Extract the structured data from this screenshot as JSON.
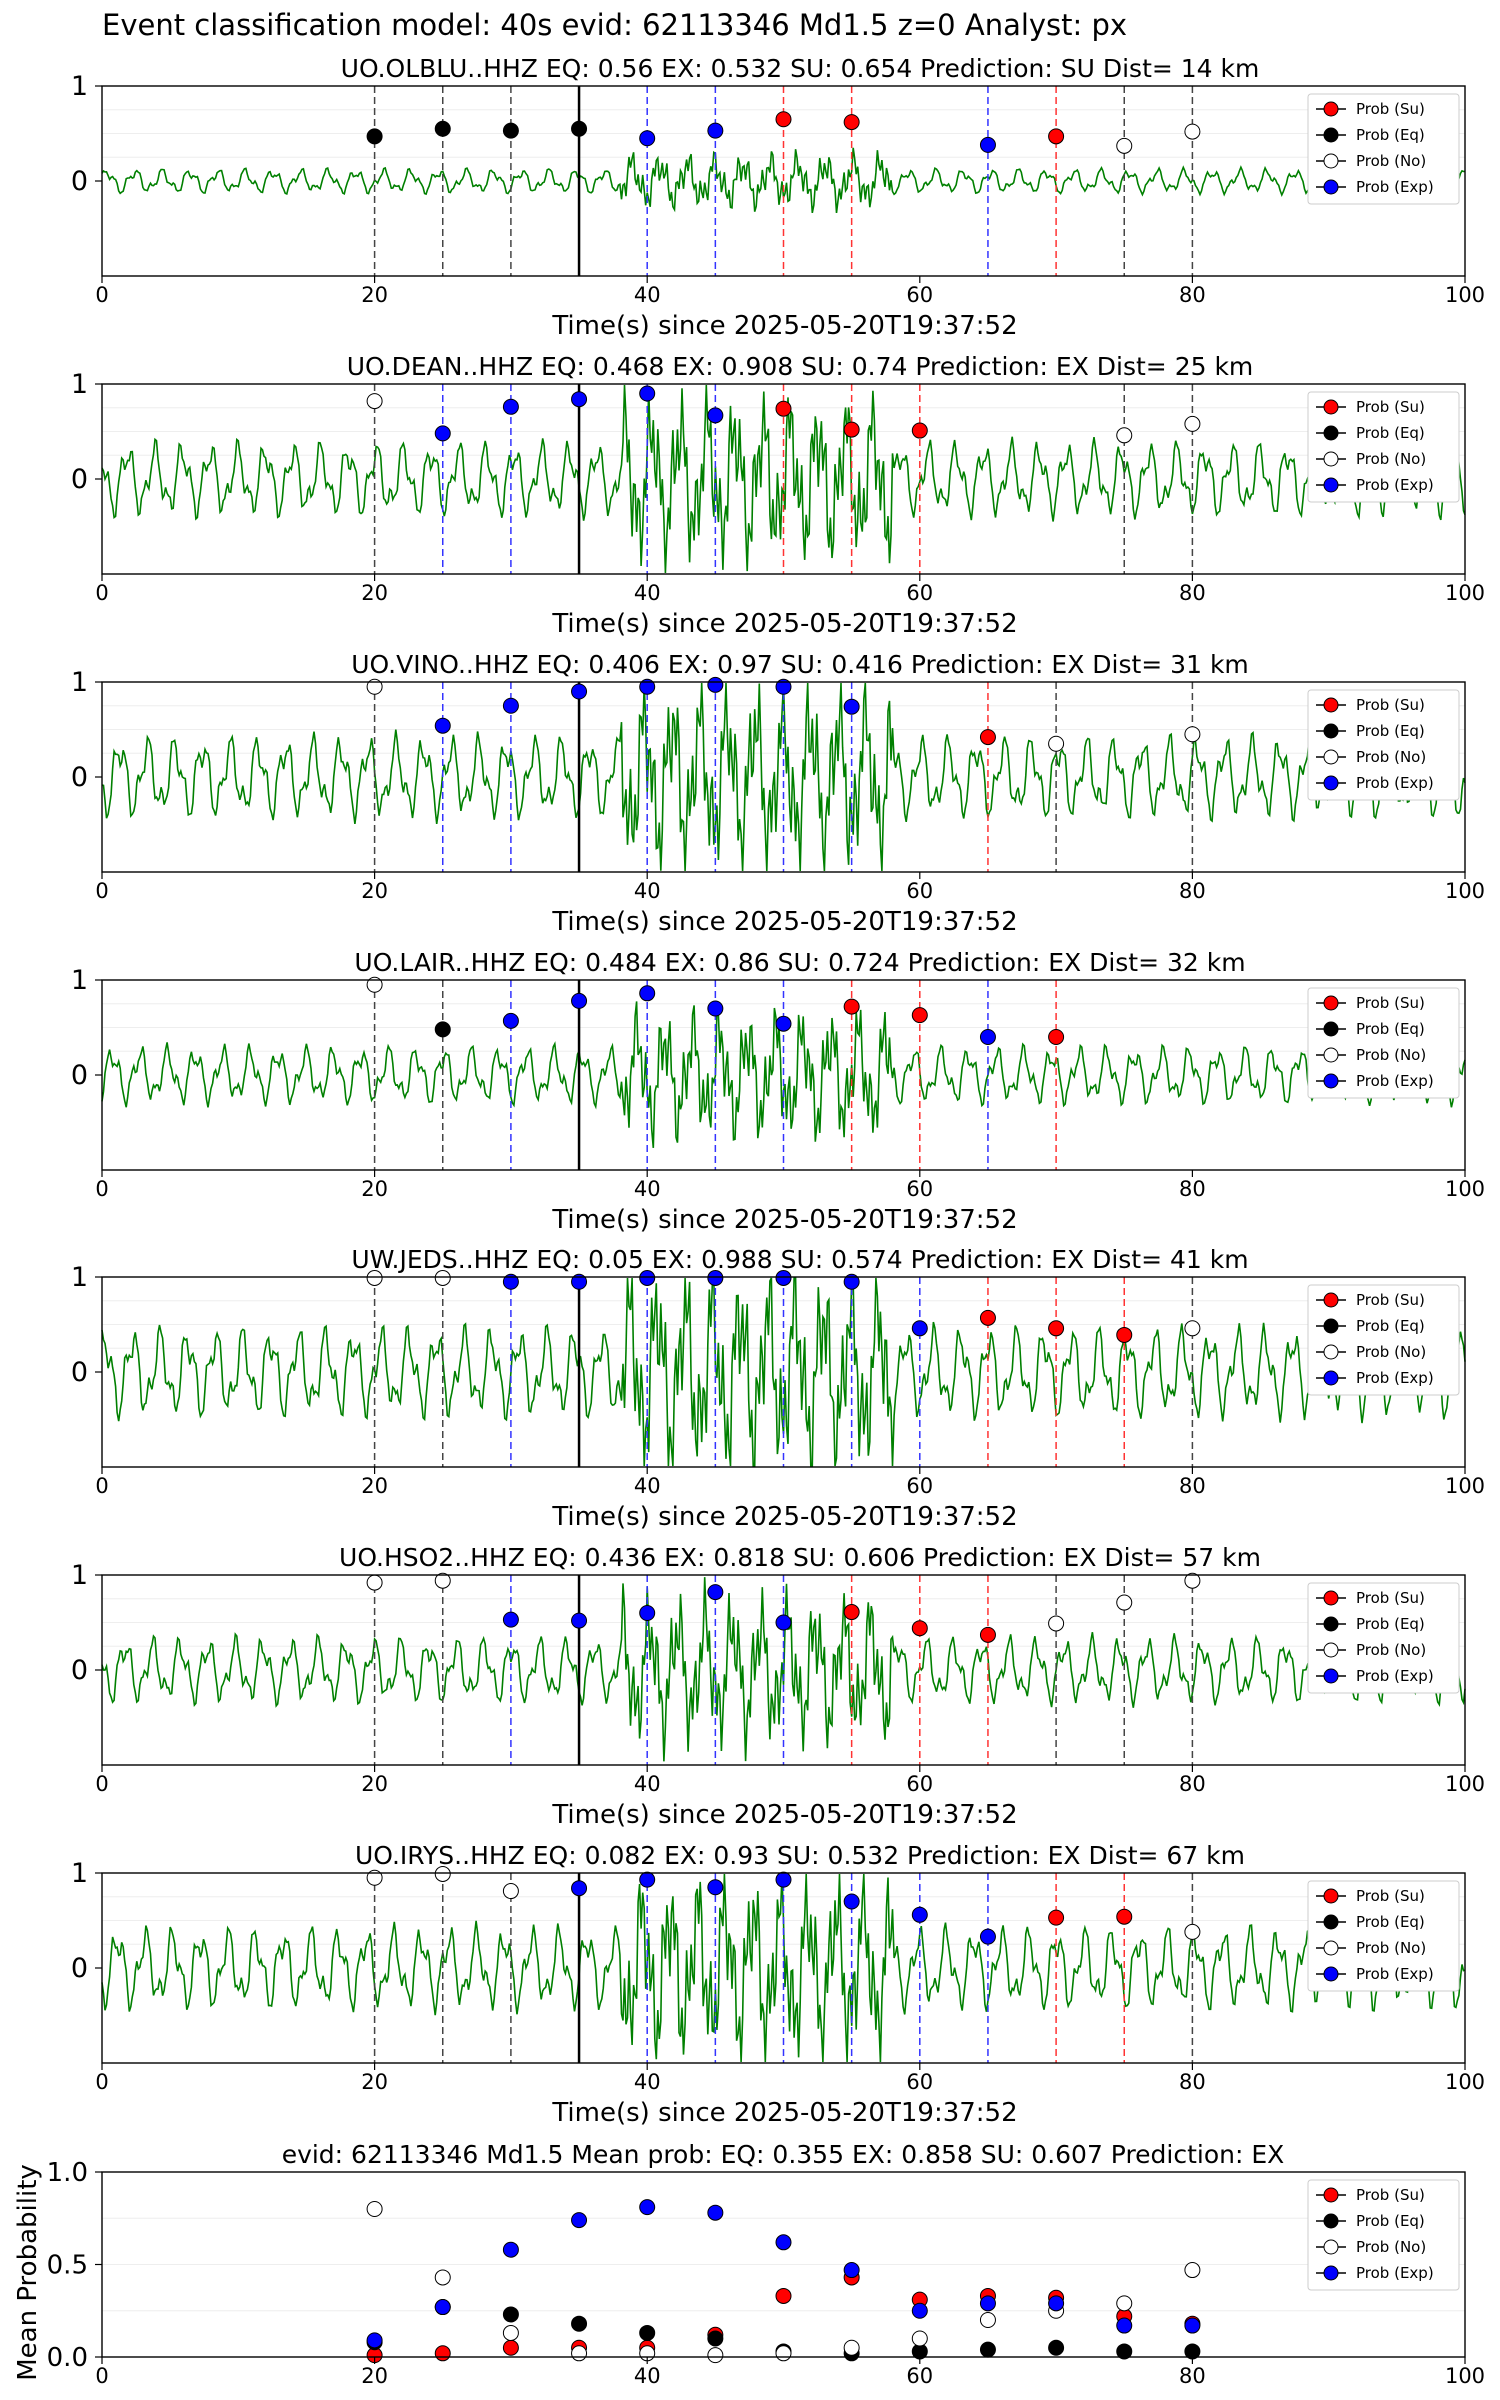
{
  "suptitle": "Event classification model: 40s evid: 62113346 Md1.5 z=0 Analyst: px",
  "colors": {
    "su": "#ff0000",
    "eq": "#000000",
    "no": "#ffffff",
    "exp": "#0000ff",
    "wave": "#008000",
    "su_line": "#ff3333",
    "eq_line": "#444444",
    "exp_line": "#3333ff"
  },
  "legend": [
    "Prob (Su)",
    "Prob (Eq)",
    "Prob (No)",
    "Prob (Exp)"
  ],
  "chart_data": [
    {
      "type": "scatter",
      "title": "UO.OLBLU..HHZ   EQ: 0.56  EX: 0.532  SU: 0.654   Prediction: SU    Dist= 14 km",
      "xlabel": "Time(s) since 2025-05-20T19:37:52",
      "xlim": [
        0,
        100
      ],
      "xticks": [
        "0",
        "20",
        "40",
        "60",
        "80",
        "100"
      ],
      "yticks": [
        "0",
        "1"
      ],
      "pick": 35,
      "grid": true,
      "legend_position": "top-right",
      "wave_amplitude": 0.15,
      "points": [
        {
          "x": 20,
          "y": 0.47,
          "cls": "eq"
        },
        {
          "x": 25,
          "y": 0.55,
          "cls": "eq"
        },
        {
          "x": 30,
          "y": 0.53,
          "cls": "eq"
        },
        {
          "x": 35,
          "y": 0.55,
          "cls": "eq"
        },
        {
          "x": 40,
          "y": 0.45,
          "cls": "exp"
        },
        {
          "x": 45,
          "y": 0.53,
          "cls": "exp"
        },
        {
          "x": 50,
          "y": 0.65,
          "cls": "su"
        },
        {
          "x": 55,
          "y": 0.62,
          "cls": "su"
        },
        {
          "x": 65,
          "y": 0.38,
          "cls": "exp"
        },
        {
          "x": 70,
          "y": 0.47,
          "cls": "su"
        },
        {
          "x": 75,
          "y": 0.37,
          "cls": "no"
        },
        {
          "x": 80,
          "y": 0.52,
          "cls": "no"
        }
      ]
    },
    {
      "type": "scatter",
      "title": "UO.DEAN..HHZ   EQ: 0.468  EX: 0.908  SU: 0.74   Prediction: EX    Dist= 25 km",
      "xlabel": "Time(s) since 2025-05-20T19:37:52",
      "xlim": [
        0,
        100
      ],
      "xticks": [
        "0",
        "20",
        "40",
        "60",
        "80",
        "100"
      ],
      "yticks": [
        "0",
        "1"
      ],
      "pick": 35,
      "grid": true,
      "legend_position": "top-right",
      "wave_amplitude": 0.45,
      "points": [
        {
          "x": 20,
          "y": 0.82,
          "cls": "no"
        },
        {
          "x": 25,
          "y": 0.48,
          "cls": "exp"
        },
        {
          "x": 30,
          "y": 0.76,
          "cls": "exp"
        },
        {
          "x": 35,
          "y": 0.84,
          "cls": "exp"
        },
        {
          "x": 40,
          "y": 0.9,
          "cls": "exp"
        },
        {
          "x": 45,
          "y": 0.67,
          "cls": "exp"
        },
        {
          "x": 50,
          "y": 0.74,
          "cls": "su"
        },
        {
          "x": 55,
          "y": 0.52,
          "cls": "su"
        },
        {
          "x": 60,
          "y": 0.51,
          "cls": "su"
        },
        {
          "x": 75,
          "y": 0.46,
          "cls": "no"
        },
        {
          "x": 80,
          "y": 0.58,
          "cls": "no"
        }
      ]
    },
    {
      "type": "scatter",
      "title": "UO.VINO..HHZ   EQ: 0.406  EX: 0.97  SU: 0.416   Prediction: EX    Dist= 31 km",
      "xlabel": "Time(s) since 2025-05-20T19:37:52",
      "xlim": [
        0,
        100
      ],
      "xticks": [
        "0",
        "20",
        "40",
        "60",
        "80",
        "100"
      ],
      "yticks": [
        "0",
        "1"
      ],
      "pick": 35,
      "grid": true,
      "legend_position": "top-right",
      "wave_amplitude": 0.5,
      "points": [
        {
          "x": 20,
          "y": 0.95,
          "cls": "no"
        },
        {
          "x": 25,
          "y": 0.54,
          "cls": "exp"
        },
        {
          "x": 30,
          "y": 0.75,
          "cls": "exp"
        },
        {
          "x": 35,
          "y": 0.9,
          "cls": "exp"
        },
        {
          "x": 40,
          "y": 0.95,
          "cls": "exp"
        },
        {
          "x": 45,
          "y": 0.97,
          "cls": "exp"
        },
        {
          "x": 50,
          "y": 0.95,
          "cls": "exp"
        },
        {
          "x": 55,
          "y": 0.74,
          "cls": "exp"
        },
        {
          "x": 65,
          "y": 0.42,
          "cls": "su"
        },
        {
          "x": 70,
          "y": 0.35,
          "cls": "no"
        },
        {
          "x": 80,
          "y": 0.45,
          "cls": "no"
        }
      ]
    },
    {
      "type": "scatter",
      "title": "UO.LAIR..HHZ   EQ: 0.484  EX: 0.86  SU: 0.724   Prediction: EX    Dist= 32 km",
      "xlabel": "Time(s) since 2025-05-20T19:37:52",
      "xlim": [
        0,
        100
      ],
      "xticks": [
        "0",
        "20",
        "40",
        "60",
        "80",
        "100"
      ],
      "yticks": [
        "0",
        "1"
      ],
      "pick": 35,
      "grid": true,
      "legend_position": "top-right",
      "wave_amplitude": 0.35,
      "points": [
        {
          "x": 20,
          "y": 0.95,
          "cls": "no"
        },
        {
          "x": 25,
          "y": 0.48,
          "cls": "eq"
        },
        {
          "x": 30,
          "y": 0.57,
          "cls": "exp"
        },
        {
          "x": 35,
          "y": 0.78,
          "cls": "exp"
        },
        {
          "x": 40,
          "y": 0.86,
          "cls": "exp"
        },
        {
          "x": 45,
          "y": 0.7,
          "cls": "exp"
        },
        {
          "x": 50,
          "y": 0.54,
          "cls": "exp"
        },
        {
          "x": 55,
          "y": 0.72,
          "cls": "su"
        },
        {
          "x": 60,
          "y": 0.63,
          "cls": "su"
        },
        {
          "x": 65,
          "y": 0.4,
          "cls": "exp"
        },
        {
          "x": 70,
          "y": 0.4,
          "cls": "su"
        }
      ]
    },
    {
      "type": "scatter",
      "title": "UW.JEDS..HHZ   EQ: 0.05  EX: 0.988  SU: 0.574   Prediction: EX    Dist= 41 km",
      "xlabel": "Time(s) since 2025-05-20T19:37:52",
      "xlim": [
        0,
        100
      ],
      "xticks": [
        "0",
        "20",
        "40",
        "60",
        "80",
        "100"
      ],
      "yticks": [
        "0",
        "1"
      ],
      "pick": 35,
      "grid": true,
      "legend_position": "top-right",
      "wave_amplitude": 0.55,
      "points": [
        {
          "x": 20,
          "y": 0.99,
          "cls": "no"
        },
        {
          "x": 25,
          "y": 0.99,
          "cls": "no"
        },
        {
          "x": 30,
          "y": 0.95,
          "cls": "exp"
        },
        {
          "x": 35,
          "y": 0.95,
          "cls": "exp"
        },
        {
          "x": 40,
          "y": 0.99,
          "cls": "exp"
        },
        {
          "x": 45,
          "y": 0.99,
          "cls": "exp"
        },
        {
          "x": 50,
          "y": 0.99,
          "cls": "exp"
        },
        {
          "x": 55,
          "y": 0.95,
          "cls": "exp"
        },
        {
          "x": 60,
          "y": 0.46,
          "cls": "exp"
        },
        {
          "x": 65,
          "y": 0.57,
          "cls": "su"
        },
        {
          "x": 70,
          "y": 0.46,
          "cls": "su"
        },
        {
          "x": 75,
          "y": 0.39,
          "cls": "su"
        },
        {
          "x": 80,
          "y": 0.46,
          "cls": "no"
        }
      ]
    },
    {
      "type": "scatter",
      "title": "UO.HSO2..HHZ   EQ: 0.436  EX: 0.818  SU: 0.606   Prediction: EX    Dist= 57 km",
      "xlabel": "Time(s) since 2025-05-20T19:37:52",
      "xlim": [
        0,
        100
      ],
      "xticks": [
        "0",
        "20",
        "40",
        "60",
        "80",
        "100"
      ],
      "yticks": [
        "0",
        "1"
      ],
      "pick": 35,
      "grid": true,
      "legend_position": "top-right",
      "wave_amplitude": 0.4,
      "points": [
        {
          "x": 20,
          "y": 0.92,
          "cls": "no"
        },
        {
          "x": 25,
          "y": 0.94,
          "cls": "no"
        },
        {
          "x": 30,
          "y": 0.53,
          "cls": "exp"
        },
        {
          "x": 35,
          "y": 0.52,
          "cls": "exp"
        },
        {
          "x": 40,
          "y": 0.6,
          "cls": "exp"
        },
        {
          "x": 45,
          "y": 0.82,
          "cls": "exp"
        },
        {
          "x": 50,
          "y": 0.5,
          "cls": "exp"
        },
        {
          "x": 55,
          "y": 0.61,
          "cls": "su"
        },
        {
          "x": 60,
          "y": 0.44,
          "cls": "su"
        },
        {
          "x": 65,
          "y": 0.37,
          "cls": "su"
        },
        {
          "x": 70,
          "y": 0.49,
          "cls": "no"
        },
        {
          "x": 75,
          "y": 0.71,
          "cls": "no"
        },
        {
          "x": 80,
          "y": 0.94,
          "cls": "no"
        }
      ]
    },
    {
      "type": "scatter",
      "title": "UO.IRYS..HHZ   EQ: 0.082  EX: 0.93  SU: 0.532   Prediction: EX    Dist= 67 km",
      "xlabel": "Time(s) since 2025-05-20T19:37:52",
      "xlim": [
        0,
        100
      ],
      "xticks": [
        "0",
        "20",
        "40",
        "60",
        "80",
        "100"
      ],
      "yticks": [
        "0",
        "1"
      ],
      "pick": 35,
      "grid": true,
      "legend_position": "top-right",
      "wave_amplitude": 0.5,
      "points": [
        {
          "x": 20,
          "y": 0.95,
          "cls": "no"
        },
        {
          "x": 25,
          "y": 0.99,
          "cls": "no"
        },
        {
          "x": 30,
          "y": 0.81,
          "cls": "no"
        },
        {
          "x": 35,
          "y": 0.84,
          "cls": "exp"
        },
        {
          "x": 40,
          "y": 0.93,
          "cls": "exp"
        },
        {
          "x": 45,
          "y": 0.85,
          "cls": "exp"
        },
        {
          "x": 50,
          "y": 0.93,
          "cls": "exp"
        },
        {
          "x": 55,
          "y": 0.7,
          "cls": "exp"
        },
        {
          "x": 60,
          "y": 0.56,
          "cls": "exp"
        },
        {
          "x": 65,
          "y": 0.33,
          "cls": "exp"
        },
        {
          "x": 70,
          "y": 0.53,
          "cls": "su"
        },
        {
          "x": 75,
          "y": 0.54,
          "cls": "su"
        },
        {
          "x": 80,
          "y": 0.38,
          "cls": "no"
        }
      ]
    },
    {
      "type": "scatter",
      "title": "evid: 62113346  Md1.5   Mean prob:   EQ: 0.355  EX: 0.858  SU: 0.607   Prediction: EX",
      "xlabel": "",
      "ylabel": "Mean Probability",
      "xlim": [
        0,
        100
      ],
      "ylim": [
        0,
        1
      ],
      "xticks": [
        "0",
        "20",
        "40",
        "60",
        "80",
        "100"
      ],
      "yticks": [
        "0.0",
        "0.5",
        "1.0"
      ],
      "grid": true,
      "legend_position": "top-right",
      "x": [
        20,
        25,
        30,
        35,
        40,
        45,
        50,
        55,
        60,
        65,
        70,
        75,
        80
      ],
      "series": [
        {
          "name": "Prob (Su)",
          "cls": "su",
          "values": [
            0.01,
            0.02,
            0.05,
            0.05,
            0.05,
            0.12,
            0.33,
            0.43,
            0.31,
            0.33,
            0.32,
            0.22,
            0.18
          ]
        },
        {
          "name": "Prob (Eq)",
          "cls": "eq",
          "values": [
            0.08,
            0.27,
            0.23,
            0.18,
            0.13,
            0.1,
            0.03,
            0.02,
            0.03,
            0.04,
            0.05,
            0.03,
            0.03
          ]
        },
        {
          "name": "Prob (No)",
          "cls": "no",
          "values": [
            0.8,
            0.43,
            0.13,
            0.02,
            0.02,
            0.01,
            0.02,
            0.05,
            0.1,
            0.2,
            0.25,
            0.29,
            0.47
          ]
        },
        {
          "name": "Prob (Exp)",
          "cls": "exp",
          "values": [
            0.09,
            0.27,
            0.58,
            0.74,
            0.81,
            0.78,
            0.62,
            0.47,
            0.25,
            0.29,
            0.29,
            0.17,
            0.17
          ]
        }
      ]
    }
  ]
}
